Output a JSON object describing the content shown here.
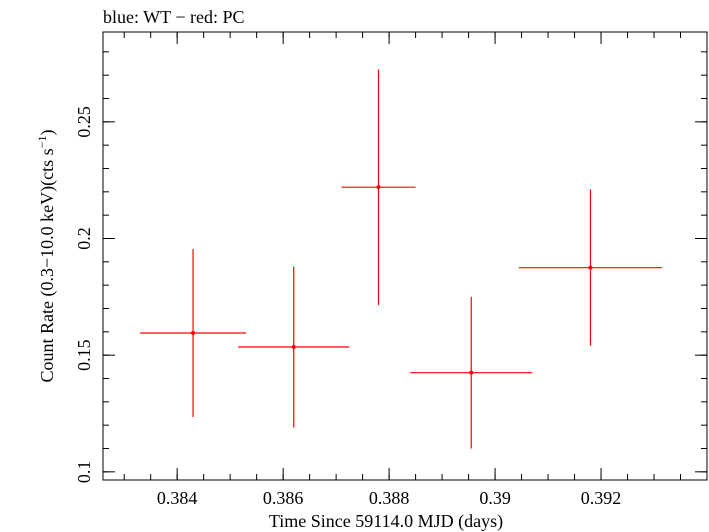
{
  "chart_data": {
    "type": "scatter",
    "title": "blue: WT − red: PC",
    "xlabel": "Time Since 59114.0 MJD (days)",
    "ylabel_main": "Count Rate (0.3−10.0 keV)(cts s",
    "ylabel_sup": "−1",
    "ylabel_close": ")",
    "xlim": [
      0.3826,
      0.394
    ],
    "ylim": [
      0.0965,
      0.2885
    ],
    "x_ticks": [
      0.384,
      0.386,
      0.388,
      0.39,
      0.392
    ],
    "x_tick_labels": [
      "0.384",
      "0.386",
      "0.388",
      "0.39",
      "0.392"
    ],
    "y_ticks": [
      0.1,
      0.15,
      0.2,
      0.25
    ],
    "y_tick_labels": [
      "0.1",
      "0.15",
      "0.2",
      "0.25"
    ],
    "grid": false,
    "series": [
      {
        "color": "#ff0000",
        "points": [
          {
            "x": 0.3843,
            "xerr": 0.001,
            "y": 0.1595,
            "yerr": 0.036
          },
          {
            "x": 0.3862,
            "xerr": 0.00105,
            "y": 0.1535,
            "yerr": 0.0345
          },
          {
            "x": 0.3878,
            "xerr": 0.0007,
            "y": 0.222,
            "yerr": 0.0505
          },
          {
            "x": 0.38955,
            "xerr": 0.00115,
            "y": 0.1425,
            "yerr": 0.0325
          },
          {
            "x": 0.3918,
            "xerr": 0.00135,
            "y": 0.1875,
            "yerr": 0.0335
          }
        ]
      }
    ]
  }
}
